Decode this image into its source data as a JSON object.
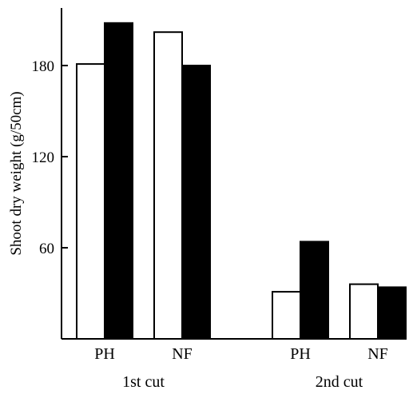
{
  "chart_data": {
    "type": "bar",
    "title": "",
    "xlabel": "",
    "ylabel": "Shoot dry weight (g/50cm)",
    "ylim": [
      0,
      205
    ],
    "yticks": [
      60,
      120,
      180
    ],
    "grid": false,
    "legend": "none",
    "groups": [
      {
        "label": "1st cut",
        "categories": [
          {
            "label": "PH",
            "values": [
              181,
              208
            ]
          },
          {
            "label": "NF",
            "values": [
              202,
              180
            ]
          }
        ]
      },
      {
        "label": "2nd cut",
        "categories": [
          {
            "label": "PH",
            "values": [
              31,
              64
            ]
          },
          {
            "label": "NF",
            "values": [
              36,
              34
            ]
          }
        ]
      }
    ],
    "series": [
      {
        "fill": "#ffffff"
      },
      {
        "fill": "#000000"
      }
    ]
  }
}
